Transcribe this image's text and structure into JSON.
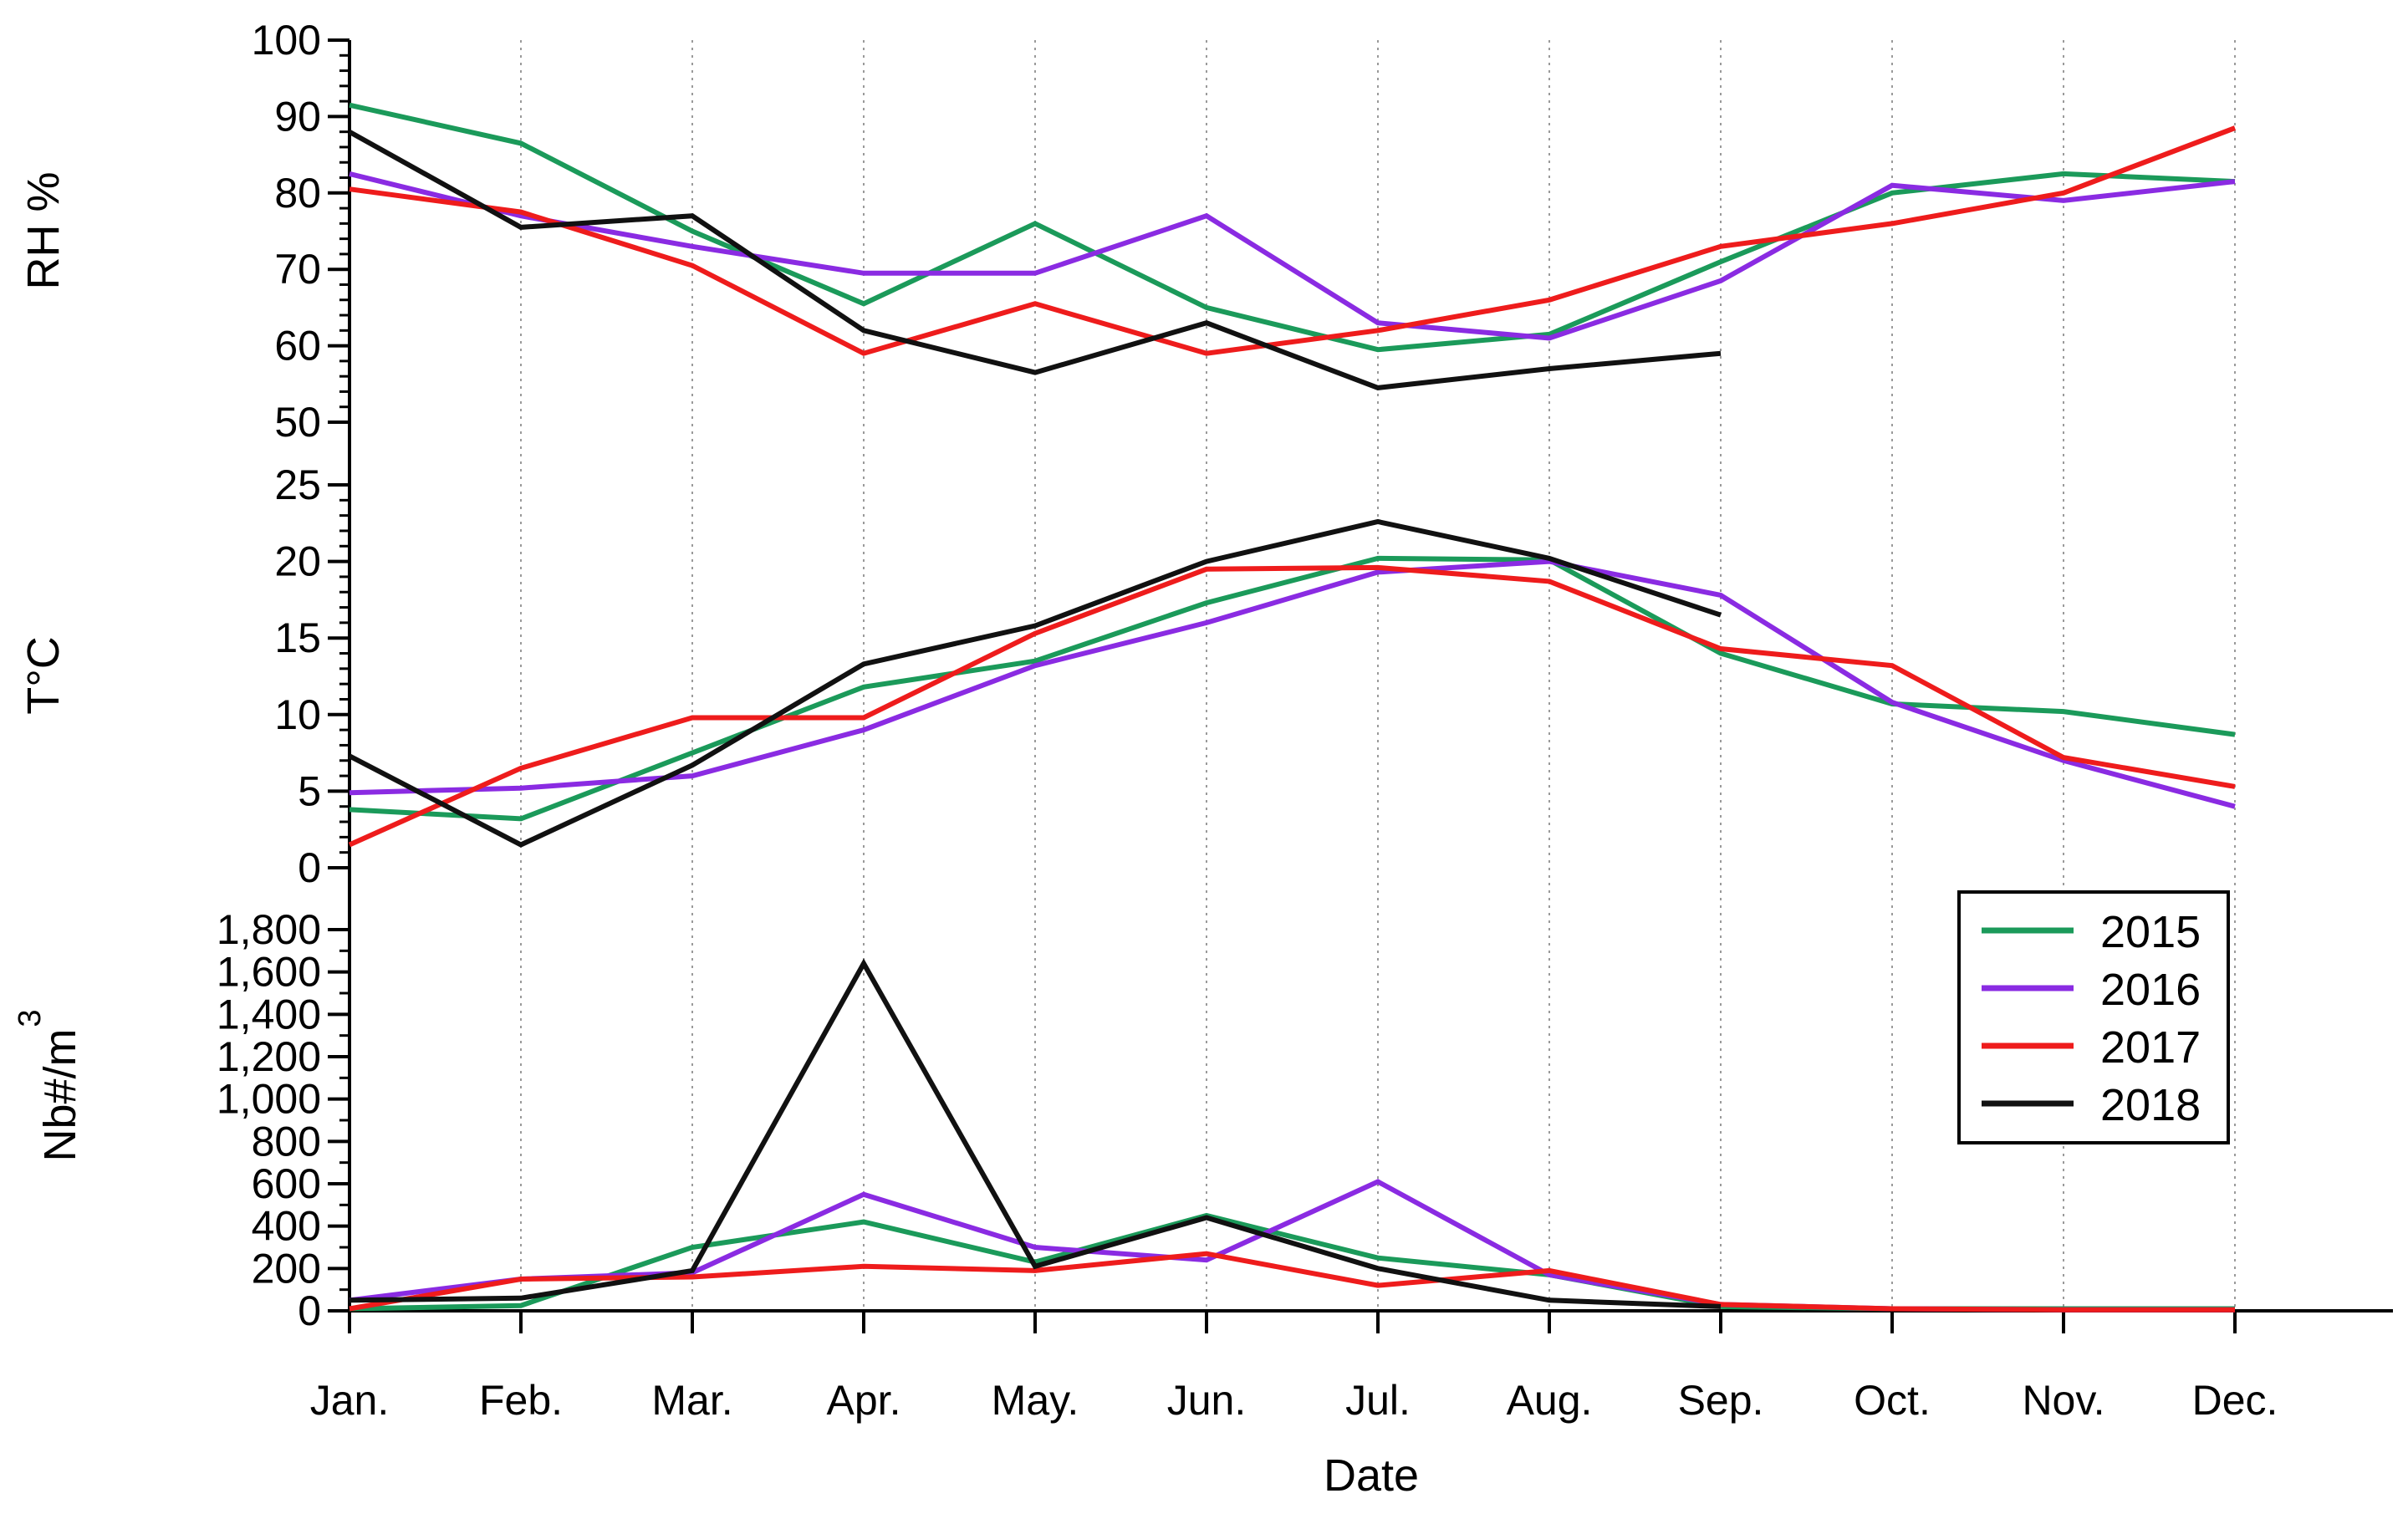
{
  "chart_data": {
    "type": "line",
    "xlabel": "Date",
    "categories": [
      "Jan.",
      "Feb.",
      "Mar.",
      "Apr.",
      "May.",
      "Jun.",
      "Jul.",
      "Aug.",
      "Sep.",
      "Oct.",
      "Nov.",
      "Dec."
    ],
    "grid": "vertical dotted at each month",
    "legend": {
      "placement": "lower-right panel, top-right",
      "entries": [
        {
          "name": "2015",
          "color": "#1b9a5a"
        },
        {
          "name": "2016",
          "color": "#8a2be2"
        },
        {
          "name": "2017",
          "color": "#ee1c1c"
        },
        {
          "name": "2018",
          "color": "#111111"
        }
      ]
    },
    "panels": [
      {
        "id": "rh",
        "ylabel": "RH %",
        "ylim": [
          50,
          100
        ],
        "yticks": [
          50,
          60,
          70,
          80,
          90,
          100
        ],
        "ytick_labels": [
          "50",
          "60",
          "70",
          "80",
          "90",
          "100"
        ],
        "series": [
          {
            "name": "2015",
            "values": [
              91.5,
              86.5,
              75,
              65.5,
              76,
              65,
              59.5,
              61.5,
              71,
              80,
              82.5,
              81.5
            ]
          },
          {
            "name": "2016",
            "values": [
              82.5,
              77,
              73,
              69.5,
              69.5,
              77,
              63,
              61,
              68.5,
              81,
              79,
              81.5
            ]
          },
          {
            "name": "2017",
            "values": [
              80.5,
              77.5,
              70.5,
              59,
              65.5,
              59,
              62,
              66,
              73,
              76,
              80,
              88.5
            ]
          },
          {
            "name": "2018",
            "values": [
              88,
              75.5,
              77,
              62,
              56.5,
              63,
              54.5,
              57,
              59,
              null,
              null,
              null
            ]
          }
        ]
      },
      {
        "id": "temp",
        "ylabel": "T°C",
        "ylim": [
          0,
          25
        ],
        "yticks": [
          0,
          5,
          10,
          15,
          20,
          25
        ],
        "ytick_labels": [
          "0",
          "5",
          "10",
          "15",
          "20",
          "25"
        ],
        "series": [
          {
            "name": "2015",
            "values": [
              3.8,
              3.2,
              7.5,
              11.8,
              13.5,
              17.3,
              20.2,
              20.1,
              14,
              10.7,
              10.2,
              8.7
            ]
          },
          {
            "name": "2016",
            "values": [
              4.9,
              5.2,
              6,
              9,
              13.2,
              16,
              19.3,
              20,
              17.8,
              10.8,
              7,
              4
            ]
          },
          {
            "name": "2017",
            "values": [
              1.5,
              6.5,
              9.8,
              9.8,
              15.3,
              19.5,
              19.6,
              18.7,
              14.3,
              13.2,
              7.2,
              5.3
            ]
          },
          {
            "name": "2018",
            "values": [
              7.3,
              1.5,
              6.7,
              13.3,
              15.8,
              20,
              22.6,
              20.2,
              16.5,
              null,
              null,
              null
            ]
          }
        ]
      },
      {
        "id": "nb",
        "ylabel": "Nb#/m",
        "ylabel_superscript": "3",
        "ylim": [
          0,
          1800
        ],
        "yticks": [
          0,
          200,
          400,
          600,
          800,
          1000,
          1200,
          1400,
          1600,
          1800
        ],
        "ytick_labels": [
          "0",
          "200",
          "400",
          "600",
          "800",
          "1,000",
          "1,200",
          "1,400",
          "1,600",
          "1,800"
        ],
        "series": [
          {
            "name": "2015",
            "values": [
              10,
              25,
              300,
              420,
              230,
              450,
              250,
              170,
              20,
              10,
              10,
              10
            ]
          },
          {
            "name": "2016",
            "values": [
              50,
              150,
              180,
              550,
              300,
              240,
              610,
              170,
              30,
              10,
              5,
              5
            ]
          },
          {
            "name": "2017",
            "values": [
              10,
              150,
              160,
              210,
              190,
              270,
              120,
              190,
              30,
              10,
              5,
              5
            ]
          },
          {
            "name": "2018",
            "values": [
              50,
              60,
              190,
              1640,
              210,
              440,
              200,
              50,
              20,
              null,
              null,
              null
            ]
          }
        ]
      }
    ]
  }
}
